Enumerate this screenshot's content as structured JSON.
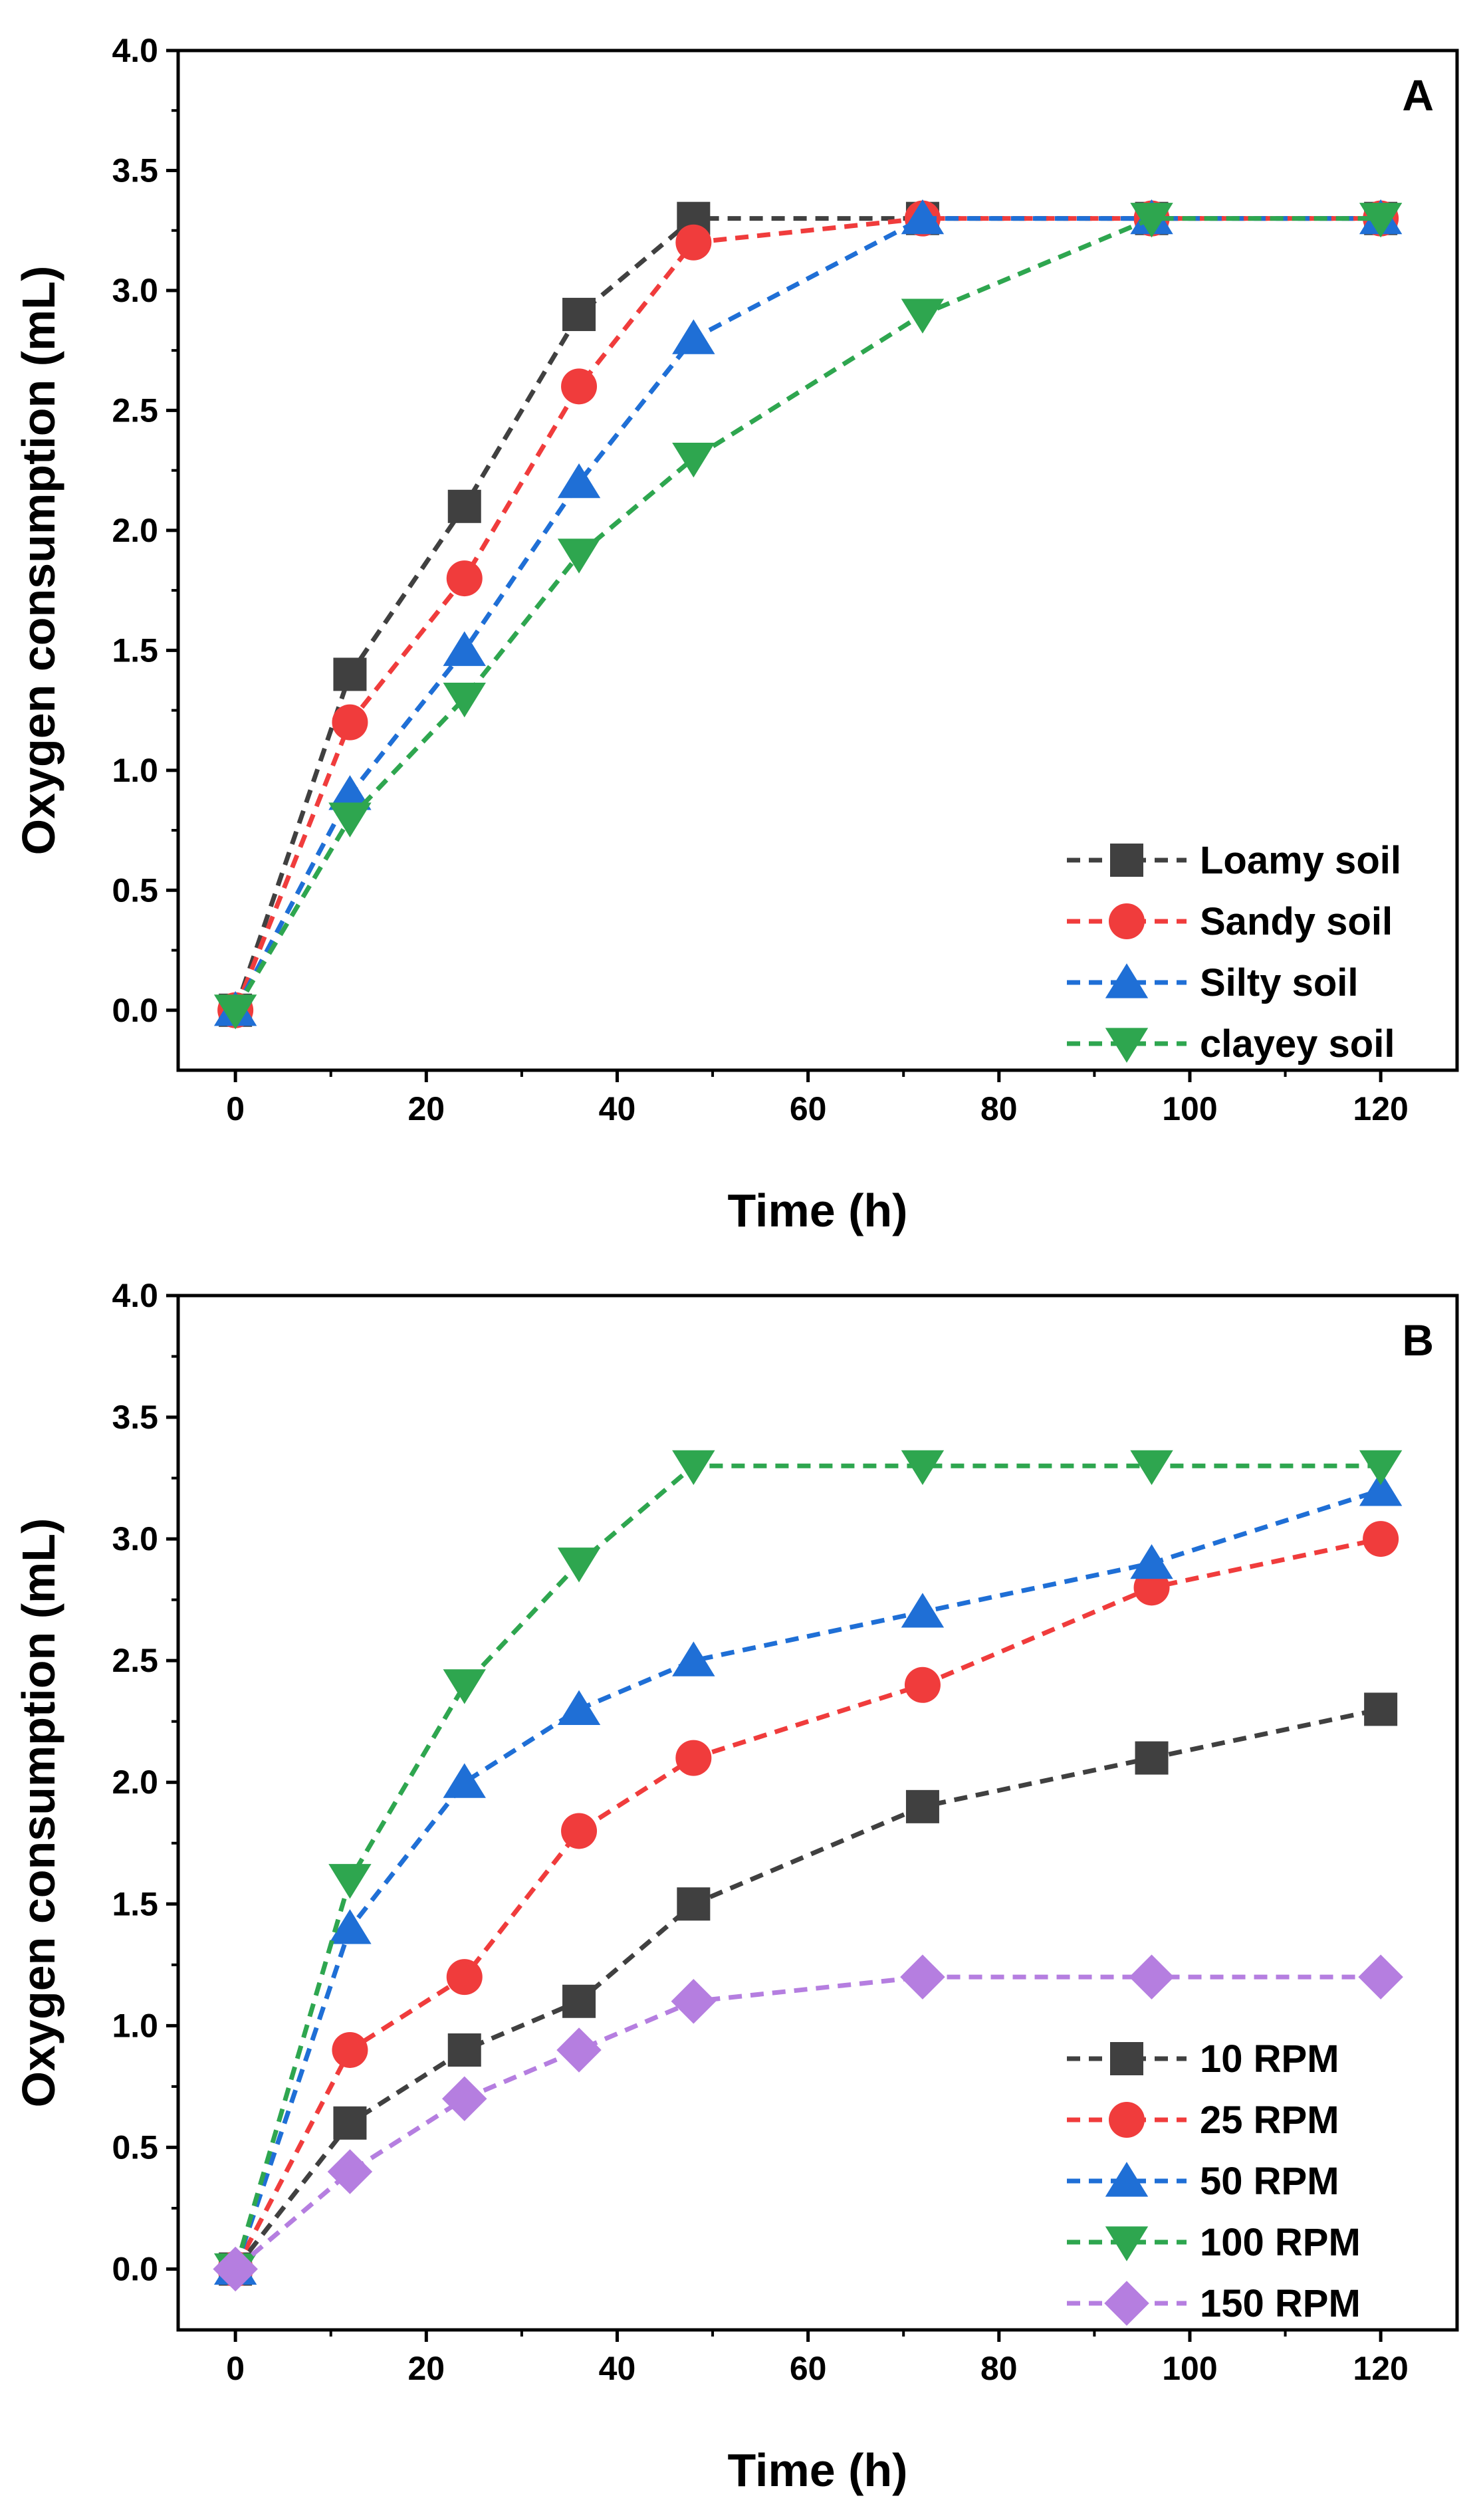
{
  "chart_data": [
    {
      "type": "line",
      "panel_label": "A",
      "title": "",
      "xlabel": "Time (h)",
      "ylabel": "Oxygen consumption (mL)",
      "xlim": [
        -6,
        128
      ],
      "ylim": [
        -0.25,
        4.0
      ],
      "xticks": [
        0,
        20,
        40,
        60,
        80,
        100,
        120
      ],
      "yticks": [
        0.0,
        0.5,
        1.0,
        1.5,
        2.0,
        2.5,
        3.0,
        3.5,
        4.0
      ],
      "xtick_labels": [
        "0",
        "20",
        "40",
        "60",
        "80",
        "100",
        "120"
      ],
      "ytick_labels": [
        "0.0",
        "0.5",
        "1.0",
        "1.5",
        "2.0",
        "2.5",
        "3.0",
        "3.5",
        "4.0"
      ],
      "legend_position": "bottom-right",
      "x": [
        0,
        12,
        24,
        36,
        48,
        72,
        96,
        120
      ],
      "series": [
        {
          "name": "Loamy soil",
          "color": "#404040",
          "marker": "square",
          "values": [
            0,
            1.4,
            2.1,
            2.9,
            3.3,
            3.3,
            3.3,
            3.3
          ]
        },
        {
          "name": "Sandy soil",
          "color": "#f03c3c",
          "marker": "circle",
          "values": [
            0,
            1.2,
            1.8,
            2.6,
            3.2,
            3.3,
            3.3,
            3.3
          ]
        },
        {
          "name": "Silty soil",
          "color": "#1f6fd6",
          "marker": "triangle-up",
          "values": [
            0,
            0.9,
            1.5,
            2.2,
            2.8,
            3.3,
            3.3,
            3.3
          ]
        },
        {
          "name": "clayey soil",
          "color": "#2ea64f",
          "marker": "triangle-down",
          "values": [
            0,
            0.8,
            1.3,
            1.9,
            2.3,
            2.9,
            3.3,
            3.3
          ]
        }
      ]
    },
    {
      "type": "line",
      "panel_label": "B",
      "title": "",
      "xlabel": "Time (h)",
      "ylabel": "Oxygen consumption (mL)",
      "xlim": [
        -6,
        128
      ],
      "ylim": [
        -0.25,
        4.0
      ],
      "xticks": [
        0,
        20,
        40,
        60,
        80,
        100,
        120
      ],
      "yticks": [
        0.0,
        0.5,
        1.0,
        1.5,
        2.0,
        2.5,
        3.0,
        3.5,
        4.0
      ],
      "xtick_labels": [
        "0",
        "20",
        "40",
        "60",
        "80",
        "100",
        "120"
      ],
      "ytick_labels": [
        "0.0",
        "0.5",
        "1.0",
        "1.5",
        "2.0",
        "2.5",
        "3.0",
        "3.5",
        "4.0"
      ],
      "legend_position": "bottom-right",
      "x": [
        0,
        12,
        24,
        36,
        48,
        72,
        96,
        120
      ],
      "series": [
        {
          "name": "10 RPM",
          "color": "#404040",
          "marker": "square",
          "values": [
            0,
            0.6,
            0.9,
            1.1,
            1.5,
            1.9,
            2.1,
            2.3
          ]
        },
        {
          "name": "25 RPM",
          "color": "#f03c3c",
          "marker": "circle",
          "values": [
            0,
            0.9,
            1.2,
            1.8,
            2.1,
            2.4,
            2.8,
            3.0
          ]
        },
        {
          "name": "50 RPM",
          "color": "#1f6fd6",
          "marker": "triangle-up",
          "values": [
            0,
            1.4,
            2.0,
            2.3,
            2.5,
            2.7,
            2.9,
            3.2
          ]
        },
        {
          "name": "100 RPM",
          "color": "#2ea64f",
          "marker": "triangle-down",
          "values": [
            0,
            1.6,
            2.4,
            2.9,
            3.3,
            3.3,
            3.3,
            3.3
          ]
        },
        {
          "name": "150 RPM",
          "color": "#b57ee0",
          "marker": "diamond",
          "values": [
            0,
            0.4,
            0.7,
            0.9,
            1.1,
            1.2,
            1.2,
            1.2
          ]
        }
      ]
    }
  ]
}
